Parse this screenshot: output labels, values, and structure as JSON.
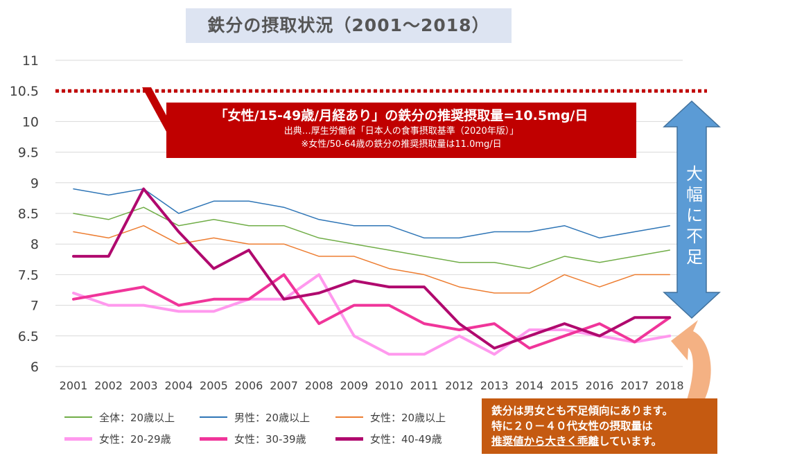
{
  "header": {
    "title": "鉄分の摂取状況（2001～2018）"
  },
  "callout_red": {
    "main": "「女性/15-49歳/月経あり」の鉄分の推奨摂取量=10.5mg/日",
    "sub1": "出典…厚生労働省「日本人の食事摂取基準（2020年版）」",
    "sub2": "※女性/50-64歳の鉄分の推奨摂取量は11.0mg/日"
  },
  "arrow_label": {
    "chars": [
      "大",
      "幅",
      "に",
      "不",
      "足"
    ]
  },
  "callout_orange": {
    "line1": "鉄分は男女とも不足傾向にあります。",
    "line2": "特に２０－４０代女性の摂取量は",
    "line3_underlined": "推奨値から大きく乖離",
    "line3_rest": "しています。"
  },
  "colors": {
    "red": "#c00000",
    "arrow_blue": "#5b9bd5",
    "arrow_orange": "#f4b183",
    "orange_box": "#c55a11"
  },
  "chart_data": {
    "type": "line",
    "title": "鉄分の摂取状況（2001～2018）",
    "xlabel": "",
    "ylabel": "",
    "ylim": [
      6,
      11
    ],
    "yticks": [
      "6",
      "6.5",
      "7",
      "7.5",
      "8",
      "8.5",
      "9",
      "9.5",
      "10",
      "10.5",
      "11"
    ],
    "grid": true,
    "legend_position": "bottom-left",
    "x": [
      "2001",
      "2002",
      "2003",
      "2004",
      "2005",
      "2006",
      "2007",
      "2008",
      "2009",
      "2010",
      "2011",
      "2012",
      "2013",
      "2014",
      "2015",
      "2016",
      "2017",
      "2018"
    ],
    "reference_line": {
      "y": 10.5,
      "color": "#c00000",
      "style": "dotted"
    },
    "series": [
      {
        "name": "全体：20歳以上",
        "color": "#70ad47",
        "width": 1.5,
        "values": [
          8.5,
          8.4,
          8.6,
          8.3,
          8.4,
          8.3,
          8.3,
          8.1,
          8.0,
          7.9,
          7.8,
          7.7,
          7.7,
          7.6,
          7.8,
          7.7,
          7.8,
          7.9
        ]
      },
      {
        "name": "男性：20歳以上",
        "color": "#2e75b6",
        "width": 1.5,
        "values": [
          8.9,
          8.8,
          8.9,
          8.5,
          8.7,
          8.7,
          8.6,
          8.4,
          8.3,
          8.3,
          8.1,
          8.1,
          8.2,
          8.2,
          8.3,
          8.1,
          8.2,
          8.3
        ]
      },
      {
        "name": "女性：20歳以上",
        "color": "#ed7d31",
        "width": 1.5,
        "values": [
          8.2,
          8.1,
          8.3,
          8.0,
          8.1,
          8.0,
          8.0,
          7.8,
          7.8,
          7.6,
          7.5,
          7.3,
          7.2,
          7.2,
          7.5,
          7.3,
          7.5,
          7.5
        ]
      },
      {
        "name": "女性：20-29歳",
        "color": "#ff99ee",
        "width": 4,
        "values": [
          7.2,
          7.0,
          7.0,
          6.9,
          6.9,
          7.1,
          7.1,
          7.5,
          6.5,
          6.2,
          6.2,
          6.5,
          6.2,
          6.6,
          6.6,
          6.5,
          6.4,
          6.5
        ]
      },
      {
        "name": "女性：30-39歳",
        "color": "#f0359a",
        "width": 4,
        "values": [
          7.1,
          7.2,
          7.3,
          7.0,
          7.1,
          7.1,
          7.5,
          6.7,
          7.0,
          7.0,
          6.7,
          6.6,
          6.7,
          6.3,
          6.5,
          6.7,
          6.4,
          6.8
        ]
      },
      {
        "name": "女性：40-49歳",
        "color": "#b0096e",
        "width": 4,
        "values": [
          7.8,
          7.8,
          8.9,
          8.2,
          7.6,
          7.9,
          7.1,
          7.2,
          7.4,
          7.3,
          7.3,
          6.7,
          6.3,
          6.5,
          6.7,
          6.5,
          6.8,
          6.8
        ]
      }
    ]
  }
}
